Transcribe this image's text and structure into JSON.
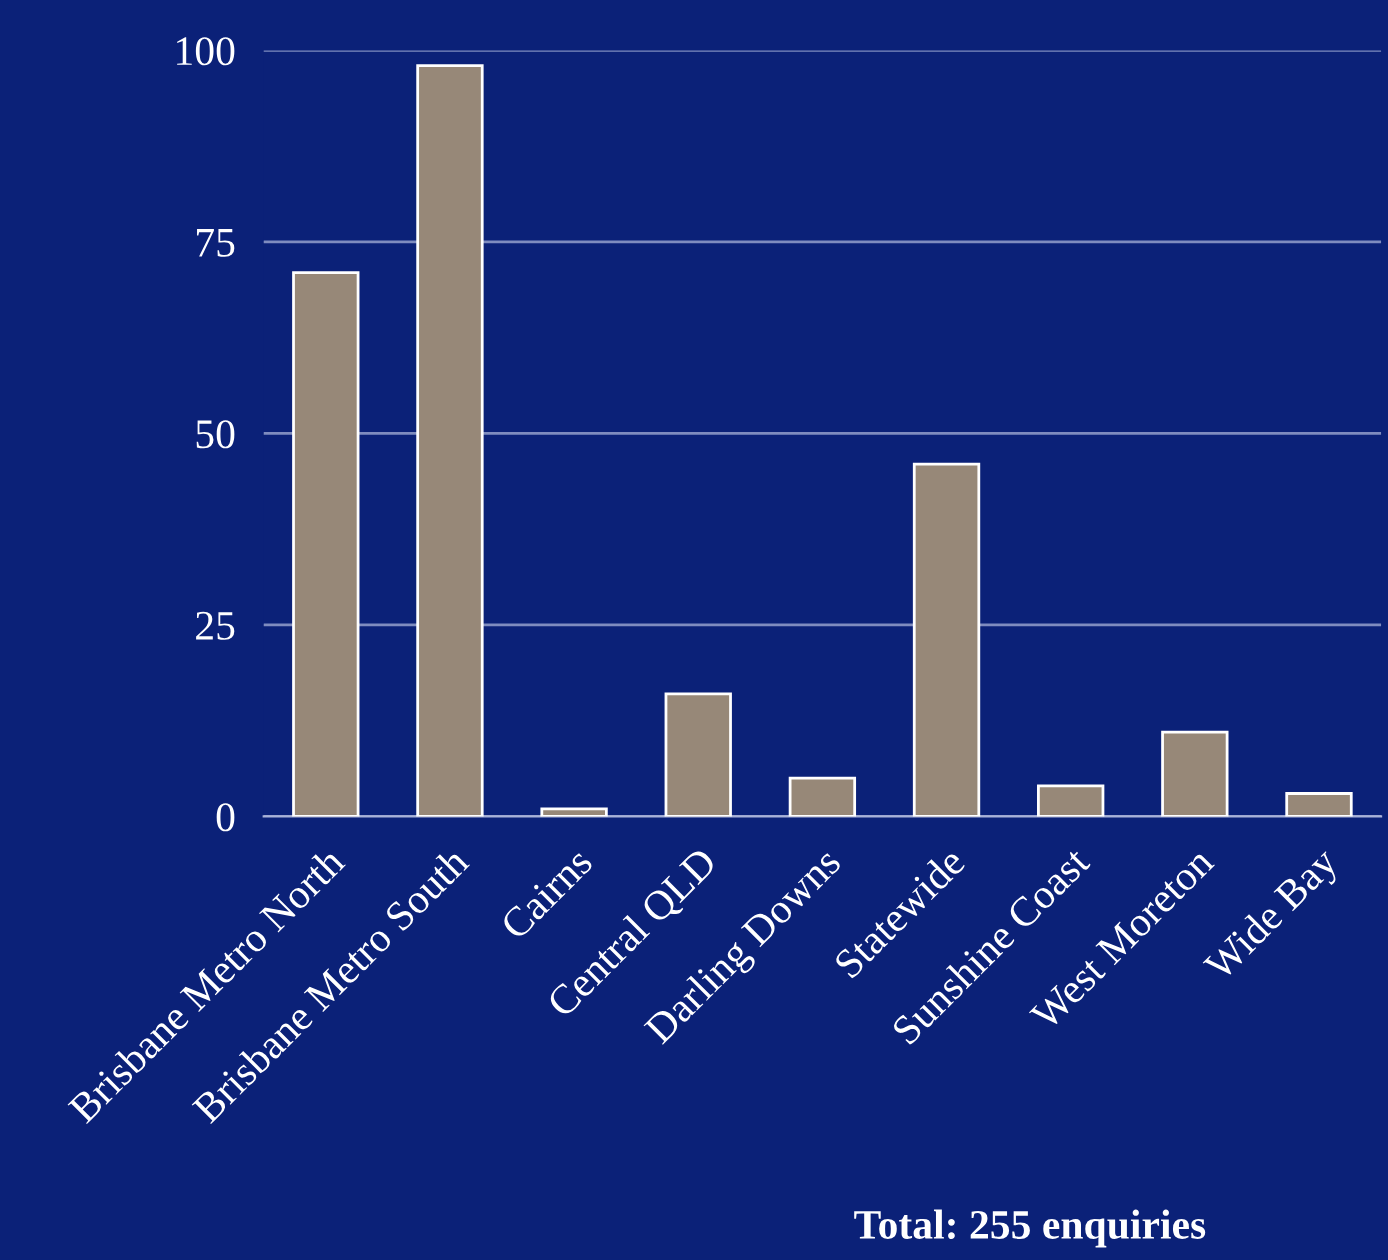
{
  "chart_data": {
    "type": "bar",
    "categories": [
      "Brisbane Metro North",
      "Brisbane Metro South",
      "Cairns",
      "Central QLD",
      "Darling Downs",
      "Statewide",
      "Sunshine Coast",
      "West Moreton",
      "Wide Bay"
    ],
    "values": [
      71,
      98,
      1,
      16,
      5,
      46,
      4,
      11,
      3
    ],
    "color": "#978878",
    "ylim": [
      0,
      100
    ],
    "yticks": [
      0,
      25,
      50,
      75,
      100
    ],
    "grid": "y",
    "annotations": [
      "Total: 255 enquiries"
    ]
  }
}
